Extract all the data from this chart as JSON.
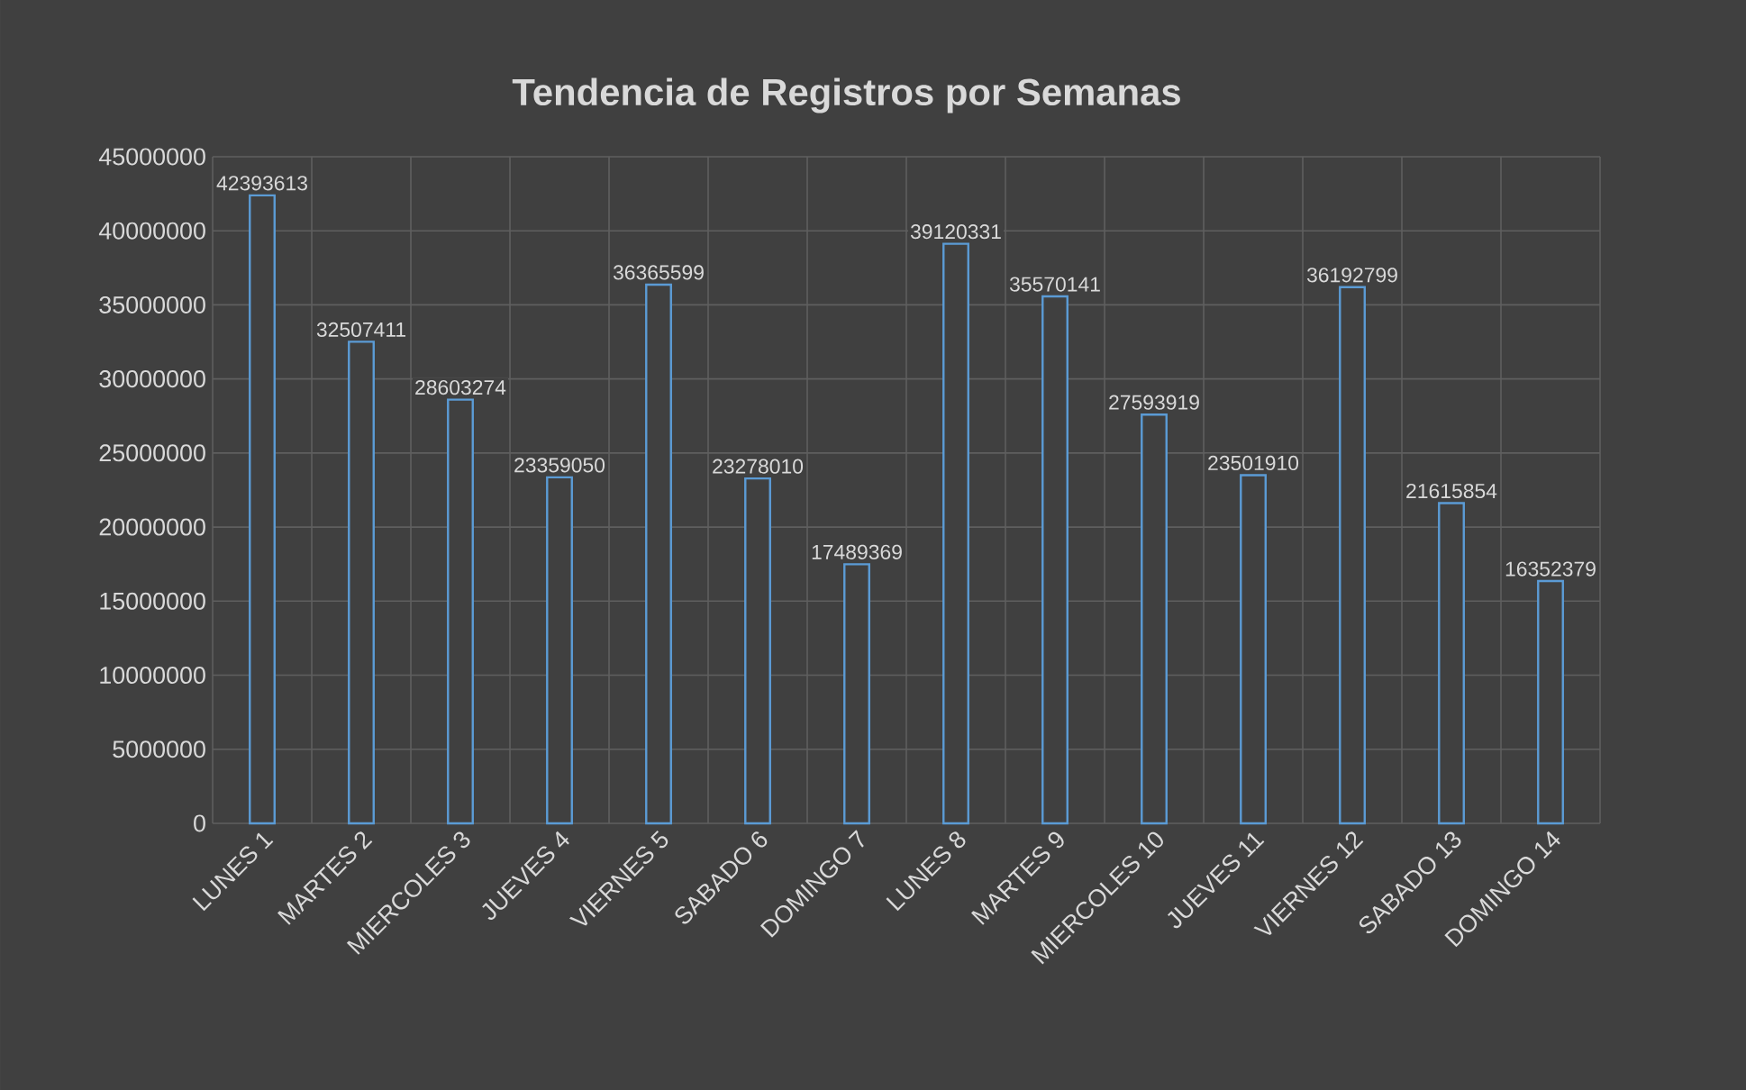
{
  "chart_data": {
    "type": "bar",
    "title": "Tendencia de Registros por Semanas",
    "categories": [
      "LUNES 1",
      "MARTES 2",
      "MIERCOLES 3",
      "JUEVES 4",
      "VIERNES 5",
      "SABADO 6",
      "DOMINGO 7",
      "LUNES 8",
      "MARTES 9",
      "MIERCOLES 10",
      "JUEVES 11",
      "VIERNES 12",
      "SABADO 13",
      "DOMINGO 14"
    ],
    "values": [
      42393613,
      32507411,
      28603274,
      23359050,
      36365599,
      23278010,
      17489369,
      39120331,
      35570141,
      27593919,
      23501910,
      36192799,
      21615854,
      16352379
    ],
    "color": "#5b9bd5",
    "ylim": [
      0,
      45000000
    ],
    "yticks": [
      0,
      5000000,
      10000000,
      15000000,
      20000000,
      25000000,
      30000000,
      35000000,
      40000000,
      45000000
    ],
    "grid": true,
    "data_labels": true
  }
}
